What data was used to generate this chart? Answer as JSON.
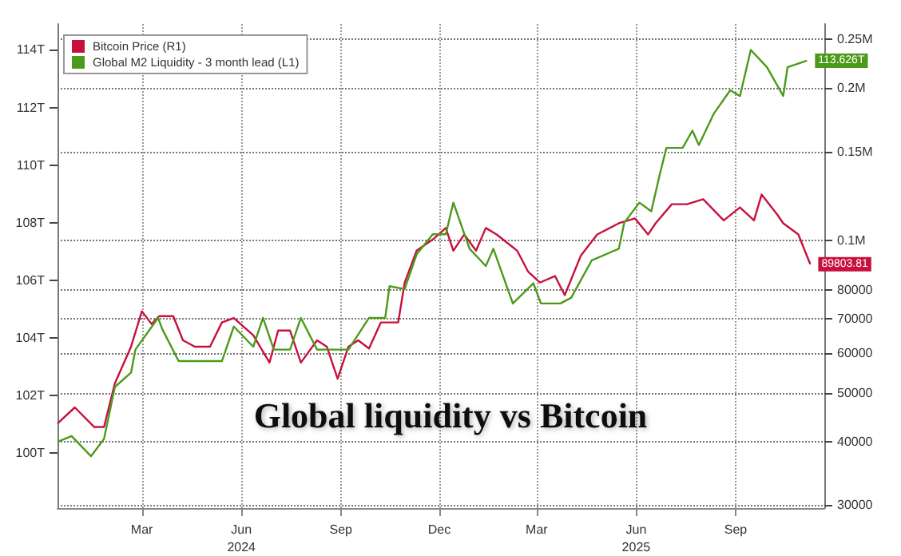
{
  "chart_data": {
    "type": "line",
    "title": "Global liquidity vs Bitcoin",
    "xlim": [
      "2023-12-29",
      "2025-12-07"
    ],
    "xticks": [
      {
        "value": "2024-03-16",
        "label": "Mar"
      },
      {
        "value": "2024-06-16",
        "label": "Jun\n2024"
      },
      {
        "value": "2024-09-16",
        "label": "Sep"
      },
      {
        "value": "2024-12-16",
        "label": "Dec"
      },
      {
        "value": "2025-03-16",
        "label": "Mar"
      },
      {
        "value": "2025-06-16",
        "label": "Jun\n2025"
      },
      {
        "value": "2025-09-16",
        "label": "Sep"
      }
    ],
    "ylim": [
      98.1,
      114.9
    ],
    "yticks": [
      {
        "value": 100,
        "label": "100T"
      },
      {
        "value": 102,
        "label": "102T"
      },
      {
        "value": 104,
        "label": "104T"
      },
      {
        "value": 106,
        "label": "106T"
      },
      {
        "value": 108,
        "label": "108T"
      },
      {
        "value": 110,
        "label": "110T"
      },
      {
        "value": 112,
        "label": "112T"
      },
      {
        "value": 114,
        "label": "114T"
      }
    ],
    "y2lim": [
      29600,
      268000
    ],
    "y2ticks": [
      30000,
      40000,
      50000,
      60000,
      70000,
      80000,
      {
        "value": 100000,
        "label": "0.1M"
      },
      {
        "value": 150000,
        "label": "0.15M"
      },
      {
        "value": 200000,
        "label": "0.2M"
      },
      {
        "value": 250000,
        "label": "0.25M"
      }
    ],
    "log": "y2",
    "grid": true,
    "legend": "top left",
    "marker": "none",
    "line_style": "solid",
    "series": [
      {
        "name": "Bitcoin Price (R1)",
        "color": "#c8103e",
        "axis": "y2",
        "x": [
          "2023-12-29",
          "2024-01-14",
          "2024-02-01",
          "2024-02-10",
          "2024-02-20",
          "2024-03-06",
          "2024-03-16",
          "2024-03-25",
          "2024-04-01",
          "2024-04-14",
          "2024-04-23",
          "2024-05-04",
          "2024-05-18",
          "2024-05-29",
          "2024-06-09",
          "2024-06-27",
          "2024-07-12",
          "2024-07-20",
          "2024-07-31",
          "2024-08-10",
          "2024-08-25",
          "2024-09-03",
          "2024-09-13",
          "2024-09-23",
          "2024-10-02",
          "2024-10-12",
          "2024-10-23",
          "2024-11-08",
          "2024-11-14",
          "2024-11-25",
          "2024-12-10",
          "2024-12-22",
          "2024-12-29",
          "2025-01-08",
          "2025-01-19",
          "2025-01-28",
          "2025-02-07",
          "2025-02-22",
          "2025-02-26",
          "2025-03-08",
          "2025-03-19",
          "2025-04-02",
          "2025-04-11",
          "2025-04-26",
          "2025-05-11",
          "2025-05-31",
          "2025-06-15",
          "2025-06-27",
          "2025-07-04",
          "2025-07-19",
          "2025-08-02",
          "2025-08-17",
          "2025-09-05",
          "2025-09-20",
          "2025-10-03",
          "2025-10-10",
          "2025-10-25",
          "2025-10-30",
          "2025-11-13",
          "2025-11-24"
        ],
        "values": [
          43500,
          46800,
          42800,
          42800,
          52200,
          61700,
          72500,
          68400,
          70900,
          70900,
          63500,
          61700,
          61700,
          68900,
          70300,
          65000,
          57400,
          66400,
          66400,
          57400,
          63500,
          61700,
          53300,
          61700,
          63500,
          61200,
          68900,
          68900,
          82600,
          95500,
          100500,
          105900,
          95500,
          102800,
          95500,
          105900,
          102800,
          97000,
          95500,
          86900,
          82600,
          85100,
          78000,
          93500,
          102800,
          108200,
          110600,
          102800,
          108200,
          118000,
          118000,
          120700,
          109600,
          116300,
          109600,
          123300,
          112200,
          108200,
          102800,
          89803.81
        ],
        "value_labels": [
          null,
          null,
          null,
          null,
          null,
          null,
          null,
          null,
          null,
          null,
          null,
          null,
          null,
          null,
          null,
          null,
          null,
          null,
          null,
          null,
          null,
          null,
          null,
          null,
          null,
          null,
          null,
          null,
          null,
          null,
          null,
          null,
          null,
          null,
          null,
          null,
          null,
          null,
          null,
          null,
          null,
          null,
          null,
          null,
          null,
          null,
          null,
          null,
          null,
          null,
          null,
          null,
          null,
          null,
          null,
          null,
          null,
          null,
          null,
          "89803.81"
        ]
      },
      {
        "name": "Global M2 Liquidity - 3 month lead (L1)",
        "color": "#4c9a1a",
        "x": [
          "2023-12-29",
          "2024-01-11",
          "2024-01-29",
          "2024-02-10",
          "2024-02-20",
          "2024-03-06",
          "2024-03-10",
          "2024-03-31",
          "2024-04-04",
          "2024-04-19",
          "2024-05-14",
          "2024-05-29",
          "2024-06-09",
          "2024-06-27",
          "2024-07-06",
          "2024-07-16",
          "2024-07-31",
          "2024-08-10",
          "2024-08-25",
          "2024-09-23",
          "2024-10-12",
          "2024-10-27",
          "2024-10-31",
          "2024-11-14",
          "2024-11-25",
          "2024-12-10",
          "2024-12-22",
          "2024-12-29",
          "2025-01-13",
          "2025-01-23",
          "2025-01-28",
          "2025-02-04",
          "2025-02-22",
          "2025-03-13",
          "2025-03-20",
          "2025-04-07",
          "2025-04-17",
          "2025-05-06",
          "2025-05-31",
          "2025-06-05",
          "2025-06-19",
          "2025-06-30",
          "2025-07-08",
          "2025-07-14",
          "2025-07-29",
          "2025-08-07",
          "2025-08-13",
          "2025-08-27",
          "2025-09-11",
          "2025-09-20",
          "2025-09-30",
          "2025-10-15",
          "2025-10-30",
          "2025-11-03",
          "2025-11-21"
        ],
        "values": [
          100.4,
          100.6,
          99.9,
          100.5,
          102.3,
          102.8,
          103.6,
          104.7,
          104.3,
          103.2,
          103.2,
          103.2,
          104.4,
          103.7,
          104.7,
          103.6,
          103.6,
          104.7,
          103.6,
          103.6,
          104.7,
          104.7,
          105.8,
          105.7,
          106.9,
          107.6,
          107.6,
          108.7,
          107.1,
          106.7,
          106.5,
          107.1,
          105.2,
          105.9,
          105.2,
          105.2,
          105.4,
          106.7,
          107.1,
          108.0,
          108.7,
          108.4,
          109.7,
          110.6,
          110.6,
          111.2,
          110.7,
          111.8,
          112.6,
          112.4,
          114.0,
          113.4,
          112.4,
          113.4,
          113.626
        ],
        "value_labels": [
          null,
          null,
          null,
          null,
          null,
          null,
          null,
          null,
          null,
          null,
          null,
          null,
          null,
          null,
          null,
          null,
          null,
          null,
          null,
          null,
          null,
          null,
          null,
          null,
          null,
          null,
          null,
          null,
          null,
          null,
          null,
          null,
          null,
          null,
          null,
          null,
          null,
          null,
          null,
          null,
          null,
          null,
          null,
          null,
          null,
          null,
          null,
          null,
          null,
          null,
          null,
          null,
          null,
          null,
          "113.626T"
        ]
      }
    ]
  }
}
